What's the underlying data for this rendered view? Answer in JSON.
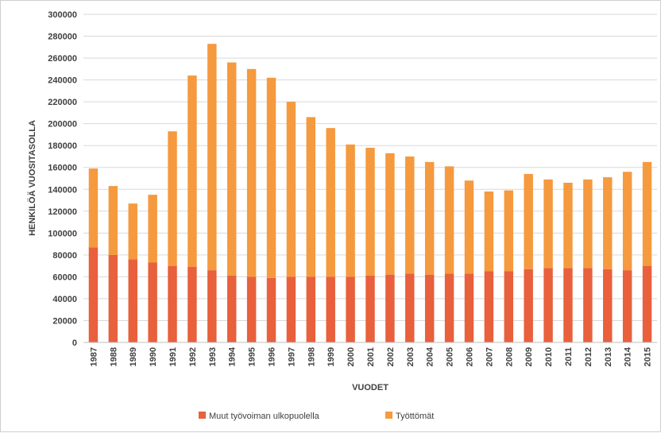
{
  "chart_data": {
    "type": "bar",
    "stacked": true,
    "categories": [
      "1987",
      "1988",
      "1989",
      "1990",
      "1991",
      "1992",
      "1993",
      "1994",
      "1995",
      "1996",
      "1997",
      "1998",
      "1999",
      "2000",
      "2001",
      "2002",
      "2003",
      "2004",
      "2005",
      "2006",
      "2007",
      "2008",
      "2009",
      "2010",
      "2011",
      "2012",
      "2013",
      "2014",
      "2015"
    ],
    "series": [
      {
        "name": "Muut työvoiman ulkopuolella",
        "color": "#e8603c",
        "values": [
          87000,
          80000,
          76000,
          73000,
          70000,
          69000,
          66000,
          61000,
          60000,
          59000,
          60000,
          60000,
          60000,
          60000,
          61000,
          62000,
          63000,
          62000,
          63000,
          63000,
          65000,
          65000,
          67000,
          68000,
          68000,
          68000,
          67000,
          66000,
          70000
        ]
      },
      {
        "name": "Työttömät",
        "color": "#f59a3f",
        "values": [
          72000,
          63000,
          51000,
          62000,
          123000,
          175000,
          207000,
          195000,
          190000,
          183000,
          160000,
          146000,
          136000,
          121000,
          117000,
          111000,
          107000,
          103000,
          98000,
          85000,
          73000,
          74000,
          87000,
          81000,
          78000,
          81000,
          84000,
          90000,
          95000
        ]
      }
    ],
    "xlabel": "VUODET",
    "ylabel": "HENKILÖÄ VUOSITASOLLA",
    "ylim": [
      0,
      300000
    ],
    "yticks": [
      "0",
      "20000",
      "40000",
      "60000",
      "80000",
      "100000",
      "120000",
      "140000",
      "160000",
      "180000",
      "200000",
      "220000",
      "240000",
      "260000",
      "280000",
      "300000"
    ],
    "ytick_values": [
      0,
      20000,
      40000,
      60000,
      80000,
      100000,
      120000,
      140000,
      160000,
      180000,
      200000,
      220000,
      240000,
      260000,
      280000,
      300000
    ],
    "grid": true,
    "legend_position": "bottom"
  }
}
